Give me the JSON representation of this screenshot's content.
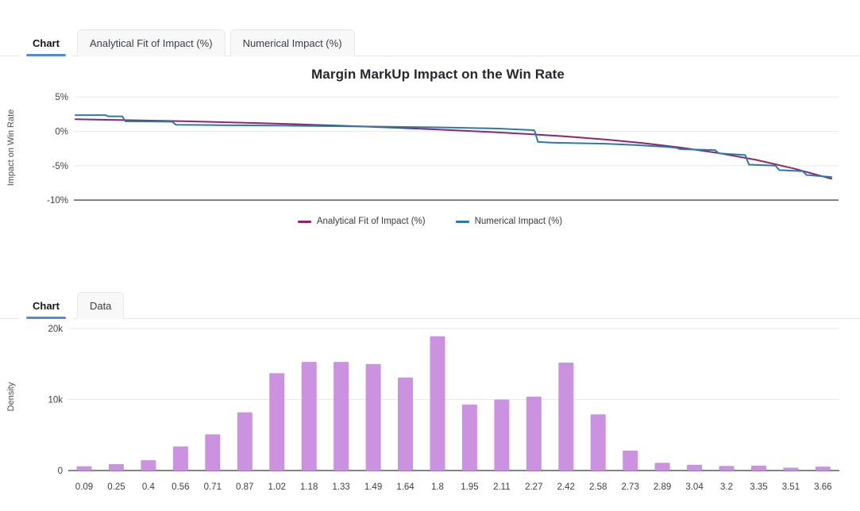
{
  "colors": {
    "tab_active_underline": "#5588d9",
    "analytical_line": "#8e2570",
    "numerical_line": "#2b7aab",
    "bar_fill": "#cb92e0",
    "gridline": "#e9eaec",
    "axis_line": "#383c42"
  },
  "tabs_top": {
    "items": [
      {
        "label": "Chart",
        "active": true
      },
      {
        "label": "Analytical Fit of Impact (%)",
        "active": false
      },
      {
        "label": "Numerical Impact (%)",
        "active": false
      }
    ]
  },
  "tabs_bottom": {
    "items": [
      {
        "label": "Chart",
        "active": true
      },
      {
        "label": "Data",
        "active": false
      }
    ]
  },
  "chart_data": [
    {
      "type": "line",
      "title": "Margin MarkUp Impact on the Win Rate",
      "xlabel": "",
      "ylabel": "Impact on Win Rate",
      "ylim": [
        -10,
        5
      ],
      "grid": true,
      "legend_position": "bottom",
      "yticks": [
        {
          "label": "5%",
          "value": 5
        },
        {
          "label": "0%",
          "value": 0
        },
        {
          "label": "-5%",
          "value": -5
        },
        {
          "label": "-10%",
          "value": -10
        }
      ],
      "x_axis_note": "x in fraction of plotted margin-markup range (no tick labels shown)",
      "series": [
        {
          "name": "Analytical Fit of Impact (%)",
          "color": "#8e2570",
          "points": [
            [
              0,
              1.75
            ],
            [
              0.05,
              1.66
            ],
            [
              0.1,
              1.56
            ],
            [
              0.15,
              1.45
            ],
            [
              0.2,
              1.32
            ],
            [
              0.25,
              1.17
            ],
            [
              0.3,
              1.0
            ],
            [
              0.35,
              0.82
            ],
            [
              0.4,
              0.62
            ],
            [
              0.45,
              0.4
            ],
            [
              0.5,
              0.16
            ],
            [
              0.55,
              -0.1
            ],
            [
              0.6,
              -0.4
            ],
            [
              0.65,
              -0.75
            ],
            [
              0.7,
              -1.18
            ],
            [
              0.75,
              -1.7
            ],
            [
              0.8,
              -2.35
            ],
            [
              0.85,
              -3.15
            ],
            [
              0.9,
              -4.15
            ],
            [
              0.95,
              -5.4
            ],
            [
              1,
              -6.9
            ]
          ]
        },
        {
          "name": "Numerical Impact (%)",
          "color": "#2b7aab",
          "points": [
            [
              0,
              2.35
            ],
            [
              0.04,
              2.35
            ],
            [
              0.043,
              2.18
            ],
            [
              0.062,
              2.18
            ],
            [
              0.066,
              1.45
            ],
            [
              0.128,
              1.4
            ],
            [
              0.133,
              0.95
            ],
            [
              0.19,
              0.9
            ],
            [
              0.28,
              0.82
            ],
            [
              0.38,
              0.7
            ],
            [
              0.48,
              0.58
            ],
            [
              0.56,
              0.4
            ],
            [
              0.6,
              0.2
            ],
            [
              0.607,
              0.15
            ],
            [
              0.612,
              -1.55
            ],
            [
              0.63,
              -1.65
            ],
            [
              0.66,
              -1.72
            ],
            [
              0.7,
              -1.8
            ],
            [
              0.74,
              -2.0
            ],
            [
              0.78,
              -2.25
            ],
            [
              0.795,
              -2.4
            ],
            [
              0.8,
              -2.6
            ],
            [
              0.846,
              -2.72
            ],
            [
              0.851,
              -3.2
            ],
            [
              0.886,
              -3.45
            ],
            [
              0.891,
              -4.85
            ],
            [
              0.926,
              -5.0
            ],
            [
              0.931,
              -5.65
            ],
            [
              0.962,
              -5.8
            ],
            [
              0.967,
              -6.35
            ],
            [
              1,
              -6.65
            ]
          ]
        }
      ]
    },
    {
      "type": "bar",
      "title": "",
      "xlabel": "",
      "ylabel": "Density",
      "ylim": [
        0,
        21000
      ],
      "grid": true,
      "bar_color": "#cb92e0",
      "yticks": [
        {
          "label": "20k",
          "value": 20000
        },
        {
          "label": "10k",
          "value": 10000
        },
        {
          "label": "0",
          "value": 0
        }
      ],
      "categories": [
        "0.09",
        "0.25",
        "0.4",
        "0.56",
        "0.71",
        "0.87",
        "1.02",
        "1.18",
        "1.33",
        "1.49",
        "1.64",
        "1.8",
        "1.95",
        "2.11",
        "2.27",
        "2.42",
        "2.58",
        "2.73",
        "2.89",
        "3.04",
        "3.2",
        "3.35",
        "3.51",
        "3.66"
      ],
      "values": [
        600,
        900,
        1450,
        3400,
        5100,
        8200,
        13700,
        15300,
        15300,
        15000,
        13100,
        18900,
        9300,
        10000,
        10400,
        15200,
        7900,
        2800,
        1100,
        800,
        650,
        700,
        400,
        550
      ]
    }
  ]
}
